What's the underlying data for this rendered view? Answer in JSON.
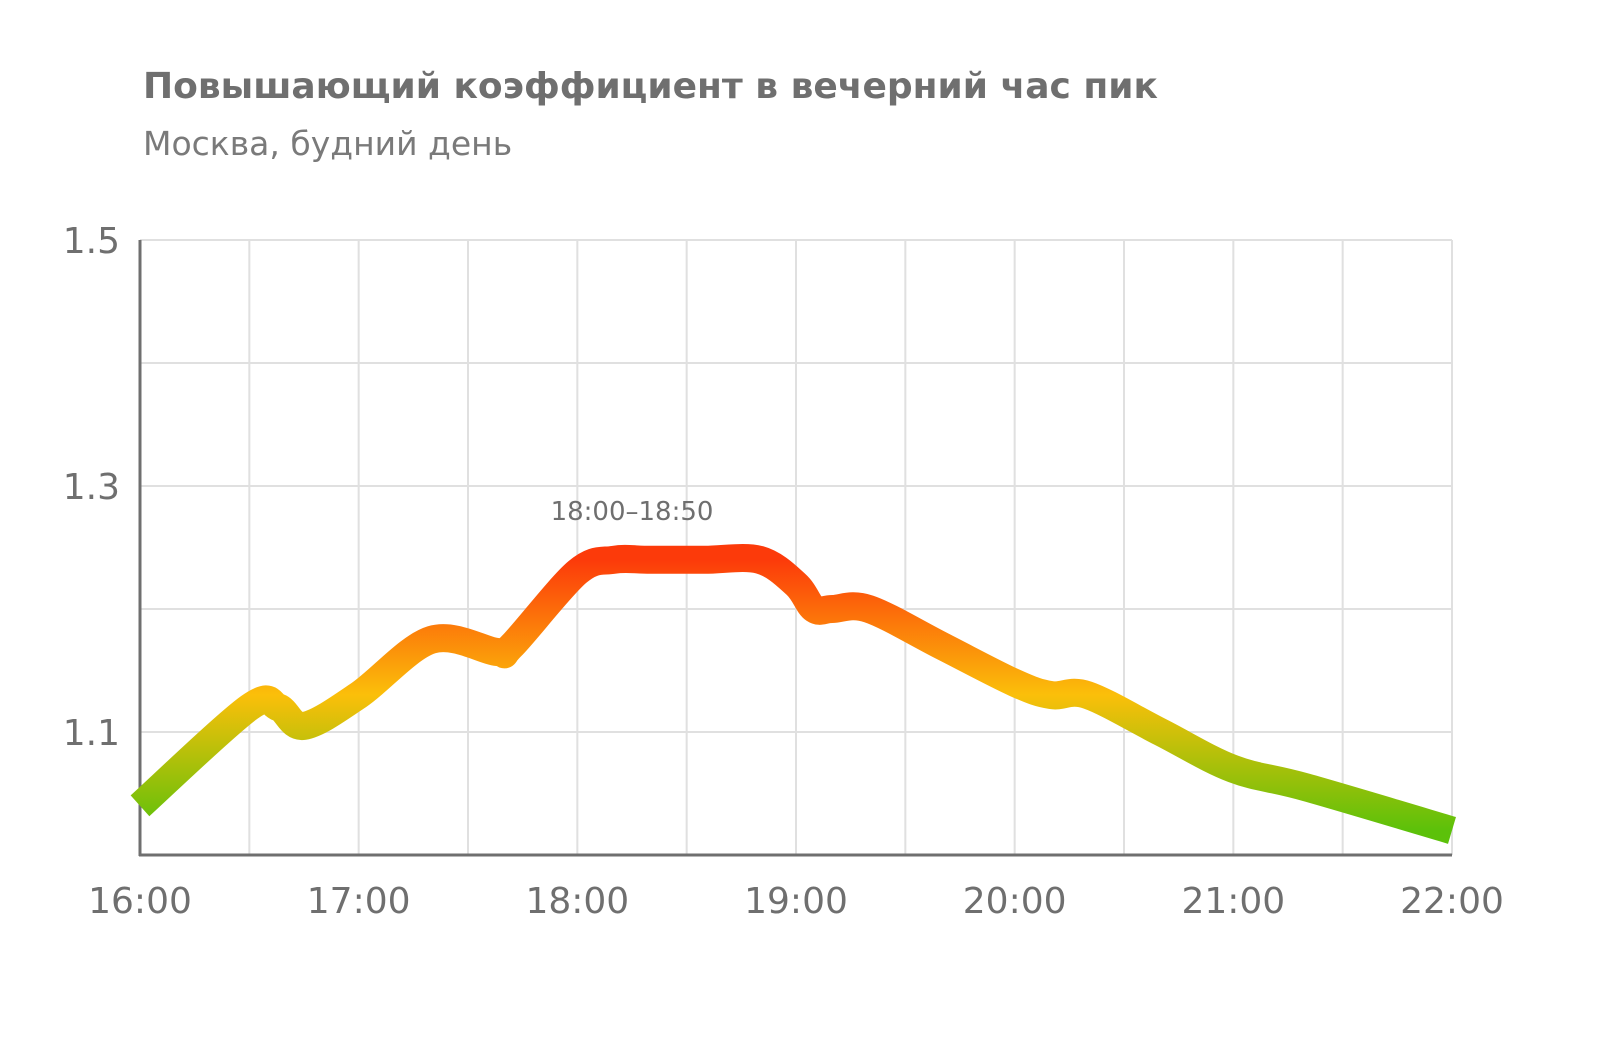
{
  "chart_data": {
    "type": "line",
    "title": "Повышающий коэффициент в вечерний час пик",
    "subtitle": "Москва, будний день",
    "xlabel": "",
    "ylabel": "",
    "x_ticks": [
      "16:00",
      "17:00",
      "18:00",
      "19:00",
      "20:00",
      "21:00",
      "22:00"
    ],
    "y_ticks": [
      "1.1",
      "1.3",
      "1.5"
    ],
    "xlim": [
      "16:00",
      "22:00"
    ],
    "ylim": [
      1.0,
      1.5
    ],
    "grid": true,
    "legend": "none",
    "annotation": {
      "text": "18:00–18:50",
      "x": "18:15",
      "y": 1.24
    },
    "series": [
      {
        "x": [
          "16:00",
          "16:30",
          "16:38",
          "16:45",
          "17:00",
          "17:20",
          "17:38",
          "17:42",
          "18:00",
          "18:10",
          "18:20",
          "18:35",
          "18:50",
          "19:00",
          "19:05",
          "19:10",
          "19:20",
          "19:40",
          "20:00",
          "20:10",
          "20:20",
          "20:40",
          "21:00",
          "21:20",
          "22:00"
        ],
        "values": [
          1.04,
          1.12,
          1.12,
          1.105,
          1.13,
          1.175,
          1.165,
          1.17,
          1.23,
          1.24,
          1.24,
          1.24,
          1.24,
          1.22,
          1.2,
          1.2,
          1.2,
          1.17,
          1.14,
          1.13,
          1.13,
          1.1,
          1.07,
          1.055,
          1.02
        ]
      }
    ],
    "colors": {
      "low": "#5cc10a",
      "mid": "#fbbf0a",
      "high": "#fc3a0a",
      "grid": "#e0e0e0",
      "axis": "#6f6f6f"
    }
  }
}
